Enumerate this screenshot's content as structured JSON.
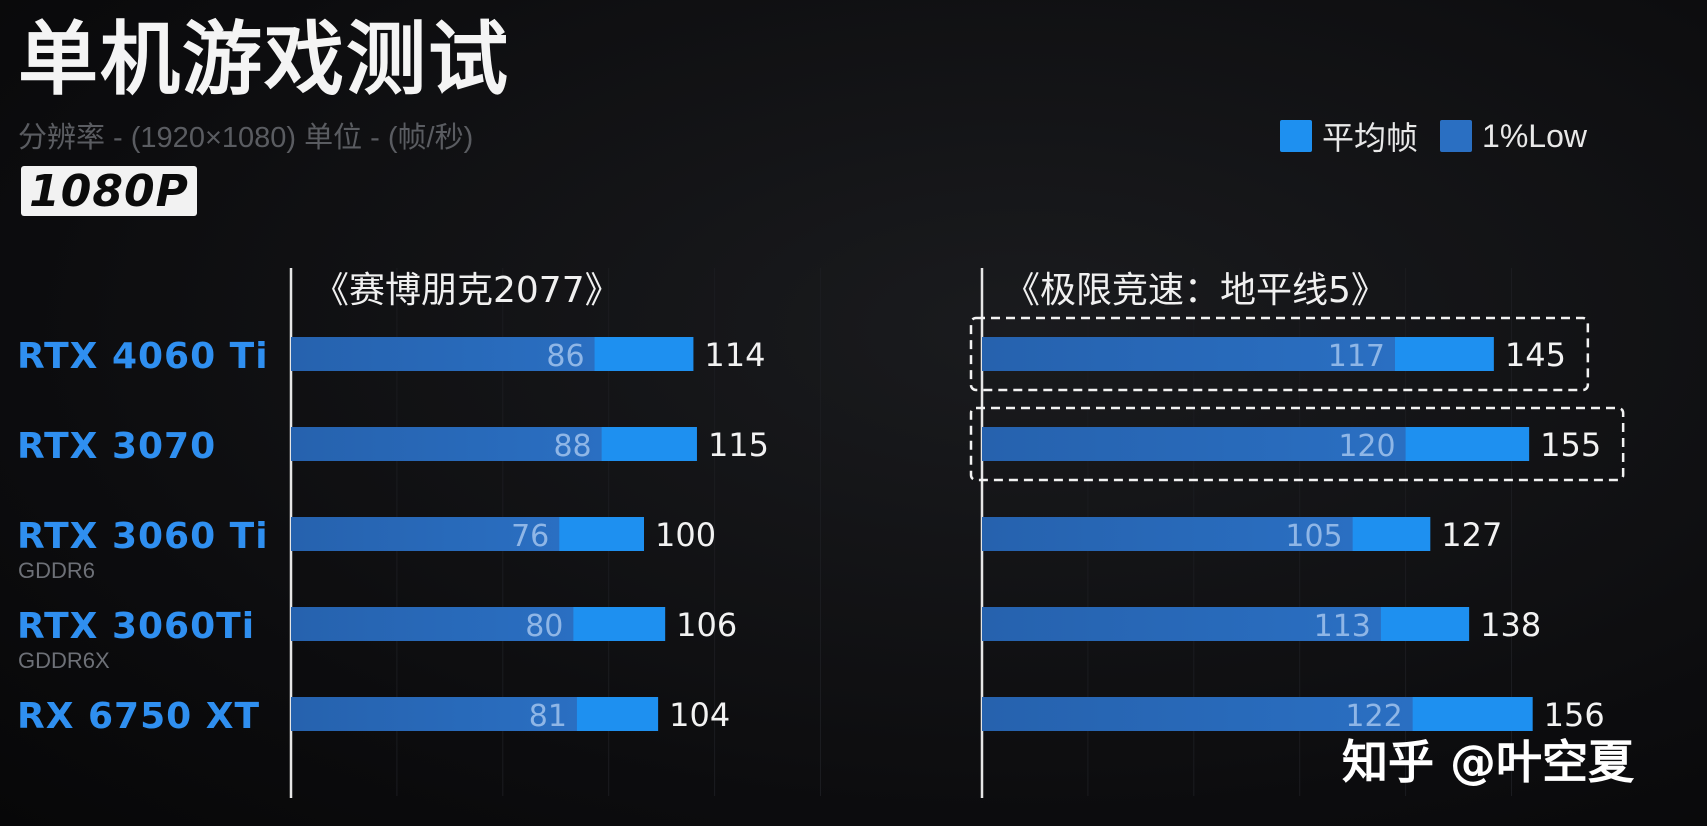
{
  "title": "单机游戏测试",
  "subtitle": "分辨率 - (1920×1080)  单位 - (帧/秒)",
  "badge": "1080P",
  "watermark": "知乎 @叶空夏",
  "colors": {
    "avg": "#1e90f0",
    "low": "#2a6fc2",
    "gpu_label": "#2f8ff0",
    "sub_label": "#6d7077"
  },
  "legend": [
    {
      "label": "平均帧",
      "color": "#1e90f0"
    },
    {
      "label": "1%Low",
      "color": "#2a6fc2"
    }
  ],
  "gpus": [
    {
      "name": "RTX 4060 Ti",
      "sub": ""
    },
    {
      "name": "RTX 3070",
      "sub": ""
    },
    {
      "name": "RTX 3060 Ti",
      "sub": "GDDR6"
    },
    {
      "name": "RTX 3060Ti",
      "sub": "GDDR6X"
    },
    {
      "name": "RX 6750 XT",
      "sub": ""
    }
  ],
  "chart_data": [
    {
      "type": "bar",
      "title": "《赛博朋克2077》",
      "categories": [
        "RTX 4060 Ti",
        "RTX 3070",
        "RTX 3060 Ti GDDR6",
        "RTX 3060Ti GDDR6X",
        "RX 6750 XT"
      ],
      "series": [
        {
          "name": "平均帧",
          "values": [
            114,
            115,
            100,
            106,
            104
          ]
        },
        {
          "name": "1%Low",
          "values": [
            86,
            88,
            76,
            80,
            81
          ]
        }
      ],
      "highlighted": []
    },
    {
      "type": "bar",
      "title": "《极限竞速：地平线5》",
      "categories": [
        "RTX 4060 Ti",
        "RTX 3070",
        "RTX 3060 Ti GDDR6",
        "RTX 3060Ti GDDR6X",
        "RX 6750 XT"
      ],
      "series": [
        {
          "name": "平均帧",
          "values": [
            145,
            155,
            127,
            138,
            156
          ]
        },
        {
          "name": "1%Low",
          "values": [
            117,
            120,
            105,
            113,
            122
          ]
        }
      ],
      "highlighted": [
        0,
        1
      ]
    }
  ]
}
